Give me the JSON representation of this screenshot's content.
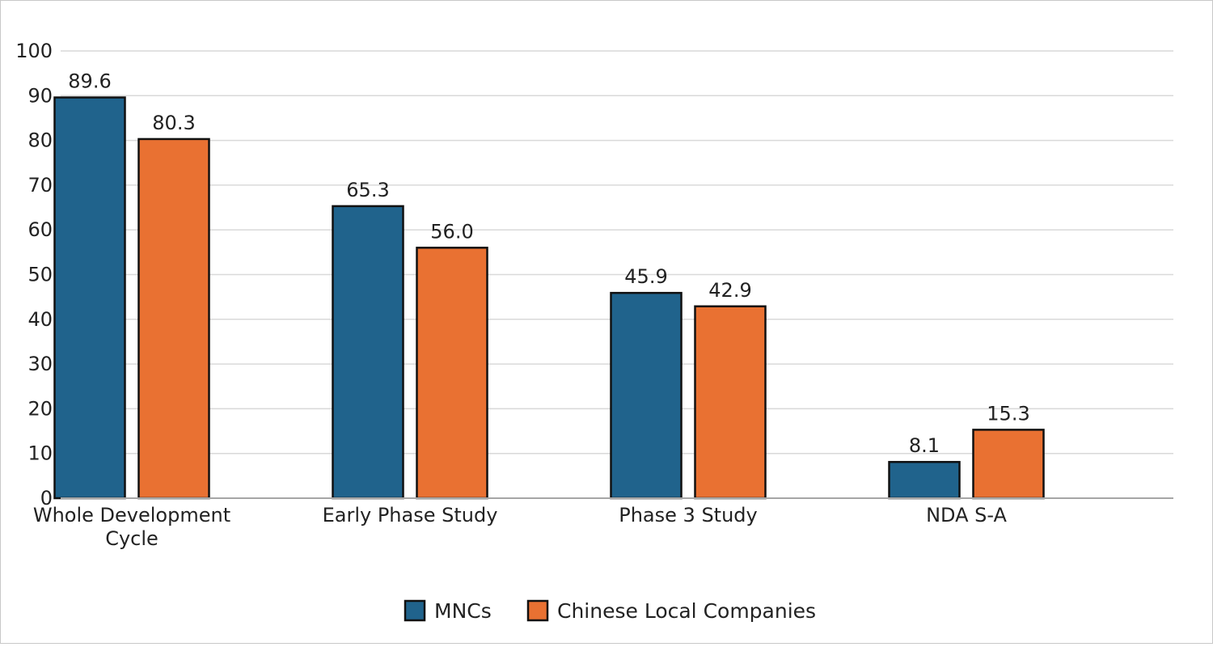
{
  "chart_data": {
    "type": "bar",
    "title": "",
    "xlabel": "",
    "ylabel": "",
    "ylim": [
      0,
      100
    ],
    "yticks": [
      "0",
      "10",
      "20",
      "30",
      "40",
      "50",
      "60",
      "70",
      "80",
      "90",
      "100"
    ],
    "grid": true,
    "legend_position": "bottom-center",
    "categories": [
      [
        "Whole Development",
        "Cycle"
      ],
      [
        "Early Phase Study"
      ],
      [
        "Phase 3 Study"
      ],
      [
        "NDA S-A"
      ]
    ],
    "series": [
      {
        "name": "MNCs",
        "color": "#20638c",
        "values": [
          89.6,
          65.3,
          45.9,
          8.1
        ],
        "labels": [
          "89.6",
          "65.3",
          "45.9",
          "8.1"
        ]
      },
      {
        "name": "Chinese Local Companies",
        "color": "#e97132",
        "values": [
          80.3,
          56.0,
          42.9,
          15.3
        ],
        "labels": [
          "80.3",
          "56.0",
          "42.9",
          "15.3"
        ]
      }
    ]
  }
}
